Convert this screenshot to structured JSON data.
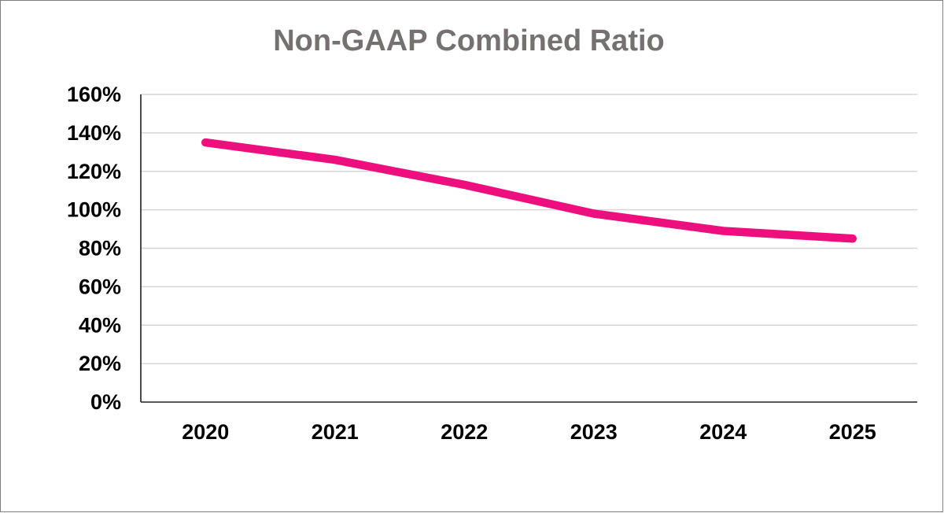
{
  "window": {
    "background": "#ffffff",
    "border_color": "#7f7f7f"
  },
  "chart_data": {
    "type": "line",
    "title": "Non-GAAP Combined Ratio",
    "categories": [
      "2020",
      "2021",
      "2022",
      "2023",
      "2024",
      "2025"
    ],
    "series": [
      {
        "name": "Non-GAAP Combined Ratio",
        "values": [
          135,
          126,
          113,
          98,
          89,
          85
        ]
      }
    ],
    "xlabel": "",
    "ylabel": "",
    "ylim": [
      0,
      160
    ],
    "y_tick_step": 20,
    "y_tick_labels": [
      "0%",
      "20%",
      "40%",
      "60%",
      "80%",
      "100%",
      "120%",
      "140%",
      "160%"
    ],
    "grid": true,
    "legend_position": "none",
    "colors": {
      "line": "#EC0F7D",
      "title": "#767171",
      "tick_label": "#000000",
      "gridline": "#D6D6D6",
      "axis_line": "#1f1f1f"
    }
  }
}
